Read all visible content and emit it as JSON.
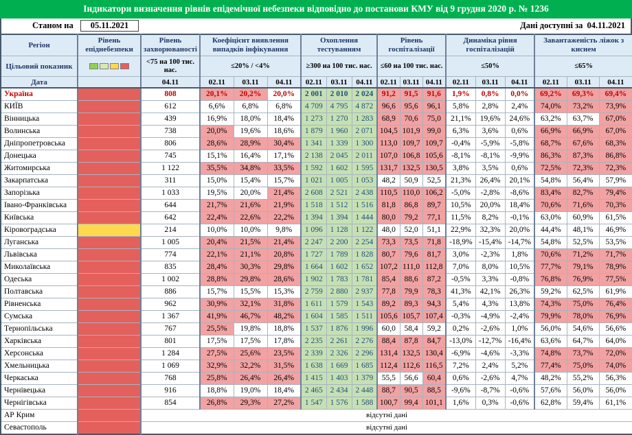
{
  "title": "Індикатори визначення рівнів епідемічної небезпеки відповідно до постанови КМУ від 9 грудня 2020 р. № 1236",
  "header": {
    "as_of_label": "Станом на",
    "as_of_date": "05.11.2021",
    "avail_label": "Дані доступні за",
    "avail_date": "04.11.2021"
  },
  "columns": {
    "region": "Регіон",
    "target_label": "Цільовий показник",
    "date_label": "Дата",
    "groups": [
      {
        "key": "danger",
        "label": "Рівень епіднебезпеки",
        "target": "",
        "dates": []
      },
      {
        "key": "incidence",
        "label": "Рівень захворюваності",
        "target": "<75 на 100 тис. нас.",
        "dates": [
          "04.11"
        ]
      },
      {
        "key": "detection",
        "label": "Коефіцієнт виявлення випадків інфікування",
        "target": "≤20% / <4%",
        "dates": [
          "02.11",
          "03.11",
          "04.11"
        ]
      },
      {
        "key": "testing",
        "label": "Охоплення тестуванням",
        "target": "≥300 на 100 тис. нас.",
        "dates": [
          "02.11",
          "03.11",
          "04.11"
        ]
      },
      {
        "key": "hospital",
        "label": "Рівень госпіталізації",
        "target": "≤60 на 100 тис. нас.",
        "dates": [
          "02.11",
          "03.11",
          "04.11"
        ]
      },
      {
        "key": "dynamics",
        "label": "Динаміка рівня госпіталізацій",
        "target": "≤50%",
        "dates": [
          "02.11",
          "03.11",
          "04.11"
        ]
      },
      {
        "key": "oxygen",
        "label": "Завантаженість ліжок з киснем",
        "target": "≤65%",
        "dates": [
          "02.11",
          "03.11",
          "04.11"
        ]
      }
    ]
  },
  "legend_colors": [
    "#92d050",
    "#d9e8b5",
    "#ffd94d",
    "#e4605c"
  ],
  "thresholds": {
    "detection": 20,
    "testing": 300,
    "hospital": 60,
    "dynamics": 50,
    "oxygen": 65
  },
  "no_data_text": "відсутні дані",
  "colors": {
    "title_bg": "#00b050",
    "title_text": "#ffffff",
    "header_bg": "#ddebf7",
    "header_text": "#1f3864",
    "bad_bg": "#f2a2a2",
    "good_bg": "#c6e0b4",
    "danger_red": "#e4605c",
    "danger_yellow": "#ffd94d",
    "ukraine_text": "#c00000",
    "testing_text": "#1f4e79",
    "border": "#a6b4c0"
  },
  "rows": [
    {
      "region": "Україна",
      "emphasis": true,
      "danger": "red",
      "incidence": "808",
      "detection": [
        "20,1%",
        "20,2%",
        "20,0%"
      ],
      "testing": [
        "2 001",
        "2 010",
        "2 024"
      ],
      "hospital": [
        "91,2",
        "91,5",
        "91,6"
      ],
      "dynamics": [
        "1,9%",
        "0,8%",
        "0,0%"
      ],
      "oxygen": [
        "69,2%",
        "69,3%",
        "69,4%"
      ]
    },
    {
      "region": "КИЇВ",
      "danger": "red",
      "incidence": "612",
      "detection": [
        "6,6%",
        "6,8%",
        "6,8%"
      ],
      "testing": [
        "4 709",
        "4 795",
        "4 872"
      ],
      "hospital": [
        "96,6",
        "95,6",
        "96,1"
      ],
      "dynamics": [
        "5,8%",
        "2,8%",
        "2,4%"
      ],
      "oxygen": [
        "74,0%",
        "73,2%",
        "73,9%"
      ]
    },
    {
      "region": "Вінницька",
      "danger": "red",
      "incidence": "439",
      "detection": [
        "16,9%",
        "18,0%",
        "18,4%"
      ],
      "testing": [
        "1 273",
        "1 270",
        "1 283"
      ],
      "hospital": [
        "68,9",
        "70,6",
        "75,0"
      ],
      "dynamics": [
        "21,1%",
        "19,6%",
        "24,6%"
      ],
      "oxygen": [
        "63,2%",
        "63,7%",
        "67,0%"
      ]
    },
    {
      "region": "Волинська",
      "danger": "red",
      "incidence": "738",
      "detection": [
        "20,0%",
        "19,6%",
        "18,6%"
      ],
      "detection_flags": [
        1,
        0,
        0
      ],
      "testing": [
        "1 879",
        "1 960",
        "2 071"
      ],
      "hospital": [
        "104,5",
        "101,9",
        "99,0"
      ],
      "dynamics": [
        "6,3%",
        "3,6%",
        "0,6%"
      ],
      "oxygen": [
        "66,9%",
        "66,9%",
        "67,0%"
      ]
    },
    {
      "region": "Дніпропетровська",
      "danger": "red",
      "incidence": "806",
      "detection": [
        "28,6%",
        "28,9%",
        "30,4%"
      ],
      "testing": [
        "1 341",
        "1 339",
        "1 300"
      ],
      "hospital": [
        "113,0",
        "109,7",
        "109,7"
      ],
      "dynamics": [
        "-0,4%",
        "-5,9%",
        "-5,8%"
      ],
      "oxygen": [
        "68,7%",
        "67,6%",
        "68,3%"
      ]
    },
    {
      "region": "Донецька",
      "danger": "red",
      "incidence": "745",
      "detection": [
        "15,1%",
        "16,4%",
        "17,1%"
      ],
      "testing": [
        "2 138",
        "2 045",
        "2 011"
      ],
      "hospital": [
        "107,0",
        "106,8",
        "105,6"
      ],
      "dynamics": [
        "-8,1%",
        "-8,1%",
        "-9,9%"
      ],
      "oxygen": [
        "86,3%",
        "87,3%",
        "86,8%"
      ]
    },
    {
      "region": "Житомирська",
      "danger": "red",
      "incidence": "1 122",
      "detection": [
        "35,5%",
        "34,8%",
        "33,5%"
      ],
      "testing": [
        "1 592",
        "1 602",
        "1 595"
      ],
      "hospital": [
        "131,7",
        "132,5",
        "130,5"
      ],
      "dynamics": [
        "3,8%",
        "3,5%",
        "0,6%"
      ],
      "oxygen": [
        "72,5%",
        "72,3%",
        "72,3%"
      ]
    },
    {
      "region": "Закарпатська",
      "danger": "red",
      "incidence": "311",
      "detection": [
        "15,0%",
        "15,4%",
        "15,7%"
      ],
      "testing": [
        "1 021",
        "1 005",
        "1 053"
      ],
      "hospital": [
        "48,2",
        "50,9",
        "52,5"
      ],
      "dynamics": [
        "21,3%",
        "26,4%",
        "20,1%"
      ],
      "oxygen": [
        "54,8%",
        "56,4%",
        "57,9%"
      ]
    },
    {
      "region": "Запорізька",
      "danger": "red",
      "incidence": "1 033",
      "detection": [
        "19,5%",
        "20,0%",
        "21,4%"
      ],
      "testing": [
        "2 608",
        "2 521",
        "2 438"
      ],
      "hospital": [
        "110,5",
        "110,0",
        "106,2"
      ],
      "dynamics": [
        "-5,0%",
        "-2,8%",
        "-8,6%"
      ],
      "oxygen": [
        "83,4%",
        "82,7%",
        "79,4%"
      ]
    },
    {
      "region": "Івано-Франківська",
      "danger": "red",
      "incidence": "644",
      "detection": [
        "21,7%",
        "21,6%",
        "21,9%"
      ],
      "testing": [
        "1 518",
        "1 512",
        "1 516"
      ],
      "hospital": [
        "81,8",
        "86,8",
        "89,7"
      ],
      "dynamics": [
        "10,5%",
        "20,0%",
        "18,4%"
      ],
      "oxygen": [
        "70,6%",
        "71,6%",
        "70,3%"
      ]
    },
    {
      "region": "Київська",
      "danger": "red",
      "incidence": "642",
      "detection": [
        "22,4%",
        "22,6%",
        "22,2%"
      ],
      "testing": [
        "1 394",
        "1 394",
        "1 444"
      ],
      "hospital": [
        "80,0",
        "79,2",
        "77,1"
      ],
      "dynamics": [
        "11,5%",
        "8,2%",
        "-0,1%"
      ],
      "oxygen": [
        "63,0%",
        "60,9%",
        "61,5%"
      ]
    },
    {
      "region": "Кіровоградська",
      "danger": "yellow",
      "incidence": "214",
      "detection": [
        "10,0%",
        "10,0%",
        "9,8%"
      ],
      "testing": [
        "1 096",
        "1 128",
        "1 122"
      ],
      "hospital": [
        "48,0",
        "52,0",
        "51,1"
      ],
      "dynamics": [
        "22,9%",
        "32,3%",
        "20,0%"
      ],
      "oxygen": [
        "44,4%",
        "48,1%",
        "46,9%"
      ]
    },
    {
      "region": "Луганська",
      "danger": "red",
      "incidence": "1 005",
      "detection": [
        "20,4%",
        "21,5%",
        "21,4%"
      ],
      "testing": [
        "2 247",
        "2 200",
        "2 254"
      ],
      "hospital": [
        "73,3",
        "73,5",
        "71,8"
      ],
      "dynamics": [
        "-18,9%",
        "-15,4%",
        "-14,7%"
      ],
      "oxygen": [
        "54,8%",
        "52,5%",
        "53,5%"
      ]
    },
    {
      "region": "Львівська",
      "danger": "red",
      "incidence": "774",
      "detection": [
        "22,1%",
        "21,1%",
        "20,8%"
      ],
      "testing": [
        "1 727",
        "1 789",
        "1 828"
      ],
      "hospital": [
        "80,7",
        "79,6",
        "81,7"
      ],
      "dynamics": [
        "3,0%",
        "-2,3%",
        "1,8%"
      ],
      "oxygen": [
        "70,6%",
        "71,2%",
        "71,7%"
      ]
    },
    {
      "region": "Миколаївська",
      "danger": "red",
      "incidence": "835",
      "detection": [
        "28,4%",
        "30,3%",
        "29,8%"
      ],
      "testing": [
        "1 664",
        "1 602",
        "1 652"
      ],
      "hospital": [
        "107,2",
        "111,0",
        "112,8"
      ],
      "dynamics": [
        "7,0%",
        "8,0%",
        "10,5%"
      ],
      "oxygen": [
        "77,7%",
        "79,1%",
        "78,9%"
      ]
    },
    {
      "region": "Одеська",
      "danger": "red",
      "incidence": "1 002",
      "detection": [
        "28,8%",
        "29,8%",
        "28,6%"
      ],
      "testing": [
        "1 902",
        "1 783",
        "1 781"
      ],
      "hospital": [
        "85,4",
        "88,6",
        "87,2"
      ],
      "dynamics": [
        "-0,5%",
        "3,3%",
        "-0,8%"
      ],
      "oxygen": [
        "76,8%",
        "76,9%",
        "77,5%"
      ]
    },
    {
      "region": "Полтавська",
      "danger": "red",
      "incidence": "886",
      "detection": [
        "15,7%",
        "15,5%",
        "15,3%"
      ],
      "testing": [
        "2 759",
        "2 880",
        "2 937"
      ],
      "hospital": [
        "77,8",
        "79,9",
        "78,3"
      ],
      "dynamics": [
        "41,3%",
        "42,1%",
        "26,3%"
      ],
      "oxygen": [
        "59,2%",
        "62,5%",
        "61,9%"
      ]
    },
    {
      "region": "Рівненська",
      "danger": "red",
      "incidence": "962",
      "detection": [
        "30,9%",
        "32,1%",
        "31,8%"
      ],
      "testing": [
        "1 611",
        "1 579",
        "1 543"
      ],
      "hospital": [
        "89,2",
        "89,3",
        "94,3"
      ],
      "dynamics": [
        "5,4%",
        "4,3%",
        "13,8%"
      ],
      "oxygen": [
        "74,3%",
        "75,0%",
        "76,4%"
      ]
    },
    {
      "region": "Сумська",
      "danger": "red",
      "incidence": "1 367",
      "detection": [
        "41,9%",
        "46,7%",
        "48,2%"
      ],
      "testing": [
        "1 604",
        "1 585",
        "1 511"
      ],
      "hospital": [
        "105,6",
        "105,7",
        "107,4"
      ],
      "dynamics": [
        "-0,3%",
        "-4,9%",
        "-2,4%"
      ],
      "oxygen": [
        "79,9%",
        "78,0%",
        "76,9%"
      ]
    },
    {
      "region": "Тернопільська",
      "danger": "red",
      "incidence": "767",
      "detection": [
        "25,5%",
        "19,8%",
        "18,8%"
      ],
      "testing": [
        "1 537",
        "1 876",
        "1 996"
      ],
      "hospital": [
        "60,0",
        "58,4",
        "59,2"
      ],
      "dynamics": [
        "0,2%",
        "-2,6%",
        "1,0%"
      ],
      "oxygen": [
        "56,0%",
        "54,6%",
        "56,6%"
      ]
    },
    {
      "region": "Харківська",
      "danger": "red",
      "incidence": "801",
      "detection": [
        "17,5%",
        "17,5%",
        "17,8%"
      ],
      "testing": [
        "2 235",
        "2 261",
        "2 276"
      ],
      "hospital": [
        "88,4",
        "87,8",
        "84,7"
      ],
      "dynamics": [
        "-13,0%",
        "-12,7%",
        "-16,4%"
      ],
      "oxygen": [
        "63,6%",
        "64,7%",
        "64,0%"
      ]
    },
    {
      "region": "Херсонська",
      "danger": "red",
      "incidence": "1 284",
      "detection": [
        "27,5%",
        "25,6%",
        "23,5%"
      ],
      "testing": [
        "2 339",
        "2 326",
        "2 296"
      ],
      "hospital": [
        "131,4",
        "132,5",
        "130,4"
      ],
      "dynamics": [
        "-6,9%",
        "-4,6%",
        "-3,3%"
      ],
      "oxygen": [
        "74,8%",
        "73,7%",
        "72,0%"
      ]
    },
    {
      "region": "Хмельницька",
      "danger": "red",
      "incidence": "1 069",
      "detection": [
        "32,9%",
        "32,2%",
        "31,5%"
      ],
      "testing": [
        "1 638",
        "1 669",
        "1 685"
      ],
      "hospital": [
        "112,4",
        "112,6",
        "116,5"
      ],
      "dynamics": [
        "7,2%",
        "2,4%",
        "5,2%"
      ],
      "oxygen": [
        "77,4%",
        "75,0%",
        "74,0%"
      ]
    },
    {
      "region": "Черкаська",
      "danger": "red",
      "incidence": "768",
      "detection": [
        "25,8%",
        "26,4%",
        "26,4%"
      ],
      "testing": [
        "1 415",
        "1 403",
        "1 379"
      ],
      "hospital": [
        "55,5",
        "56,6",
        "60,4"
      ],
      "dynamics": [
        "0,6%",
        "-2,6%",
        "4,7%"
      ],
      "oxygen": [
        "48,2%",
        "55,2%",
        "56,3%"
      ]
    },
    {
      "region": "Чернівецька",
      "danger": "red",
      "incidence": "916",
      "detection": [
        "18,8%",
        "19,0%",
        "18,4%"
      ],
      "testing": [
        "2 465",
        "2 434",
        "2 448"
      ],
      "hospital": [
        "88,7",
        "90,5",
        "88,5"
      ],
      "dynamics": [
        "-9,6%",
        "-8,7%",
        "-0,6%"
      ],
      "oxygen": [
        "57,6%",
        "56,0%",
        "56,0%"
      ]
    },
    {
      "region": "Чернігівська",
      "danger": "red",
      "incidence": "854",
      "detection": [
        "26,8%",
        "29,3%",
        "27,2%"
      ],
      "testing": [
        "1 547",
        "1 576",
        "1 588"
      ],
      "hospital": [
        "100,7",
        "99,4",
        "101,1"
      ],
      "dynamics": [
        "1,6%",
        "0,3%",
        "-0,6%"
      ],
      "oxygen": [
        "62,8%",
        "59,4%",
        "61,1%"
      ]
    },
    {
      "region": "АР Крим",
      "danger": "red",
      "no_data": true
    },
    {
      "region": "Севастополь",
      "danger": "red",
      "no_data": true
    }
  ]
}
